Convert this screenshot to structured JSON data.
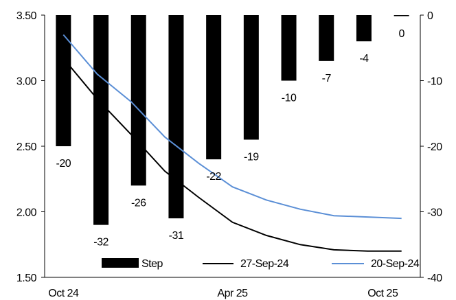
{
  "chart_data": {
    "type": "bar+line",
    "title": "",
    "x_tick_labels": [
      "Oct 24",
      "Apr 25",
      "Oct 25"
    ],
    "left_axis": {
      "ylim": [
        1.5,
        3.5
      ],
      "ticks": [
        "1.50",
        "2.00",
        "2.50",
        "3.00",
        "3.50"
      ]
    },
    "right_axis": {
      "ylim": [
        -40,
        0
      ],
      "ticks": [
        "-40",
        "-30",
        "-20",
        "-10",
        "0"
      ]
    },
    "bars": {
      "name": "Step",
      "axis": "right",
      "color": "#000000",
      "values": [
        -20,
        -32,
        -26,
        -31,
        -22,
        -19,
        -10,
        -7,
        -4,
        0
      ],
      "labels": [
        "-20",
        "-32",
        "-26",
        "-31",
        "-22",
        "-19",
        "-10",
        "-7",
        "-4",
        "0"
      ]
    },
    "series": [
      {
        "name": "27-Sep-24",
        "axis": "left",
        "color": "#000000",
        "values": [
          3.17,
          2.86,
          2.59,
          2.31,
          2.11,
          1.92,
          1.82,
          1.75,
          1.71,
          1.7,
          1.7
        ]
      },
      {
        "name": "20-Sep-24",
        "axis": "left",
        "color": "#5B8FD6",
        "values": [
          3.35,
          3.05,
          2.84,
          2.57,
          2.37,
          2.19,
          2.09,
          2.02,
          1.97,
          1.96,
          1.95
        ]
      }
    ],
    "legend": {
      "placement": "bottom",
      "entries": [
        "Step",
        "27-Sep-24",
        "20-Sep-24"
      ]
    },
    "grid": false
  }
}
